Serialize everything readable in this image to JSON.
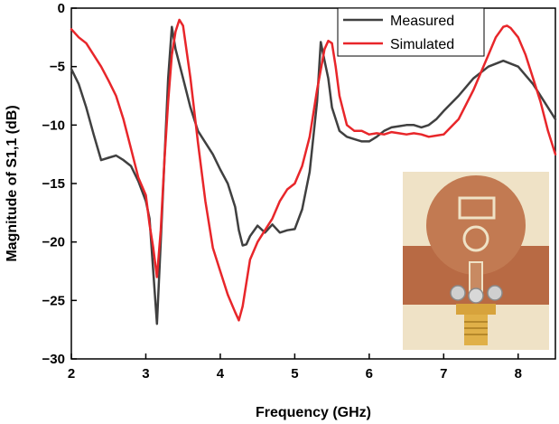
{
  "chart_data": {
    "type": "line",
    "xlabel": "Frequency (GHz)",
    "ylabel": "Magnitude of S1,1 (dB)",
    "xlim": [
      2,
      8.5
    ],
    "ylim": [
      -30,
      0
    ],
    "xticks": [
      2,
      3,
      4,
      5,
      6,
      7,
      8
    ],
    "yticks": [
      0,
      -5,
      -10,
      -15,
      -20,
      -25,
      -30
    ],
    "grid": false,
    "legend_position": "top-right",
    "inset": "photo of fabricated antenna prototype with SMA connector",
    "series": [
      {
        "name": "Measured",
        "color": "#404040",
        "x": [
          2.0,
          2.1,
          2.2,
          2.3,
          2.4,
          2.5,
          2.6,
          2.7,
          2.8,
          2.9,
          3.0,
          3.05,
          3.1,
          3.15,
          3.2,
          3.25,
          3.3,
          3.35,
          3.4,
          3.5,
          3.6,
          3.7,
          3.8,
          3.9,
          4.0,
          4.1,
          4.2,
          4.25,
          4.3,
          4.35,
          4.4,
          4.5,
          4.6,
          4.7,
          4.8,
          4.9,
          5.0,
          5.1,
          5.2,
          5.3,
          5.35,
          5.4,
          5.45,
          5.5,
          5.6,
          5.7,
          5.8,
          5.9,
          6.0,
          6.1,
          6.2,
          6.3,
          6.4,
          6.5,
          6.6,
          6.7,
          6.8,
          6.9,
          7.0,
          7.2,
          7.4,
          7.6,
          7.8,
          8.0,
          8.2,
          8.4,
          8.5
        ],
        "y": [
          -5.2,
          -6.5,
          -8.5,
          -10.8,
          -13.0,
          -12.8,
          -12.6,
          -13.0,
          -13.5,
          -14.8,
          -16.5,
          -18.0,
          -22.5,
          -27.0,
          -20.0,
          -13.0,
          -6.0,
          -1.6,
          -3.5,
          -6.0,
          -8.5,
          -10.5,
          -11.5,
          -12.5,
          -13.8,
          -15.0,
          -17.0,
          -19.0,
          -20.3,
          -20.2,
          -19.5,
          -18.6,
          -19.2,
          -18.5,
          -19.2,
          -19.0,
          -18.9,
          -17.2,
          -14.0,
          -8.0,
          -2.9,
          -4.5,
          -6.0,
          -8.5,
          -10.5,
          -11.0,
          -11.2,
          -11.4,
          -11.4,
          -11.0,
          -10.5,
          -10.2,
          -10.1,
          -10.0,
          -10.0,
          -10.2,
          -10.0,
          -9.5,
          -8.8,
          -7.5,
          -6.0,
          -5.0,
          -4.5,
          -5.0,
          -6.5,
          -8.5,
          -9.5
        ]
      },
      {
        "name": "Simulated",
        "color": "#e8262a",
        "x": [
          2.0,
          2.1,
          2.2,
          2.3,
          2.4,
          2.5,
          2.6,
          2.7,
          2.8,
          2.9,
          3.0,
          3.05,
          3.1,
          3.15,
          3.2,
          3.25,
          3.3,
          3.35,
          3.4,
          3.45,
          3.5,
          3.6,
          3.7,
          3.8,
          3.9,
          4.0,
          4.1,
          4.2,
          4.25,
          4.3,
          4.35,
          4.4,
          4.5,
          4.6,
          4.7,
          4.8,
          4.9,
          5.0,
          5.1,
          5.2,
          5.3,
          5.4,
          5.45,
          5.5,
          5.55,
          5.6,
          5.7,
          5.8,
          5.9,
          6.0,
          6.1,
          6.2,
          6.3,
          6.4,
          6.5,
          6.6,
          6.7,
          6.8,
          6.9,
          7.0,
          7.2,
          7.4,
          7.6,
          7.7,
          7.8,
          7.85,
          7.9,
          8.0,
          8.1,
          8.2,
          8.3,
          8.4,
          8.5
        ],
        "y": [
          -1.8,
          -2.5,
          -3.0,
          -4.0,
          -5.0,
          -6.2,
          -7.5,
          -9.5,
          -12.0,
          -14.5,
          -16.0,
          -18.5,
          -20.5,
          -23.0,
          -19.0,
          -13.0,
          -8.0,
          -4.0,
          -2.0,
          -1.0,
          -1.5,
          -6.0,
          -11.5,
          -16.5,
          -20.5,
          -22.5,
          -24.5,
          -26.0,
          -26.7,
          -25.5,
          -23.5,
          -21.5,
          -20.0,
          -19.0,
          -18.0,
          -16.5,
          -15.5,
          -15.0,
          -13.5,
          -11.0,
          -7.0,
          -3.5,
          -2.8,
          -3.0,
          -5.0,
          -7.5,
          -10.0,
          -10.5,
          -10.5,
          -10.8,
          -10.7,
          -10.8,
          -10.6,
          -10.7,
          -10.8,
          -10.7,
          -10.8,
          -11.0,
          -10.9,
          -10.8,
          -9.5,
          -7.0,
          -4.0,
          -2.5,
          -1.6,
          -1.5,
          -1.7,
          -2.5,
          -4.0,
          -6.0,
          -8.0,
          -10.5,
          -12.5
        ]
      }
    ]
  }
}
